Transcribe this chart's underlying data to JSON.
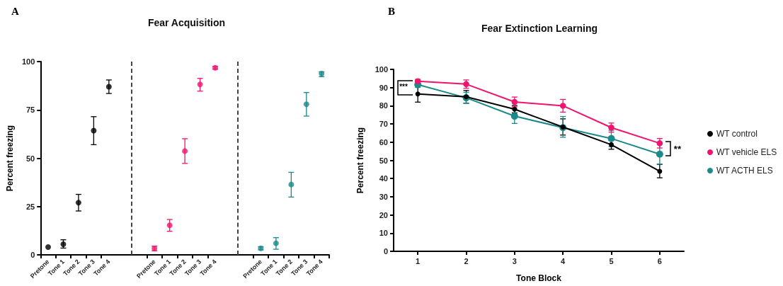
{
  "chart_data": [
    {
      "type": "scatter",
      "title": "Fear Acquisition",
      "ylabel": "Percent freezing",
      "annotations": [
        "A"
      ],
      "categories": [
        "Pretone",
        "Tone 1",
        "Tone 2",
        "Tone 3",
        "Tone 4",
        null,
        null,
        "Pretone",
        "Tone 1",
        "Tone 2",
        "Tone 3",
        "Tone 4",
        null,
        null,
        "Pretone",
        "Tone 1",
        "Tone 2",
        "Tone 3",
        "Tone 4"
      ],
      "ylim": [
        0,
        100
      ],
      "yticks": [
        0,
        25,
        50,
        75,
        100
      ],
      "grid": false,
      "legend": false,
      "marker": "circle",
      "series": [
        {
          "color": "#000000",
          "values": [
            4,
            5.5,
            27,
            64.3,
            87,
            null,
            null,
            null,
            null,
            null,
            null,
            null,
            null,
            null,
            null,
            null,
            null,
            null,
            null
          ],
          "errors": [
            null,
            [
              3.5,
              7.8
            ],
            [
              22.7,
              31.3
            ],
            [
              57,
              71.5
            ],
            [
              83.5,
              90.5
            ],
            null,
            null,
            null,
            null,
            null,
            null,
            null,
            null,
            null,
            null,
            null,
            null,
            null,
            null
          ]
        },
        {
          "color": "#f0146e",
          "values": [
            null,
            null,
            null,
            null,
            null,
            null,
            null,
            3.3,
            15.3,
            53.7,
            88.2,
            96.8,
            null,
            null,
            null,
            null,
            null,
            null,
            null
          ],
          "errors": [
            null,
            null,
            null,
            null,
            null,
            null,
            null,
            1.2,
            [
              12.2,
              18.3
            ],
            [
              47.3,
              60.1
            ],
            [
              84.7,
              91.3
            ],
            0.7,
            null,
            null,
            null,
            null,
            null,
            null,
            null
          ]
        },
        {
          "color": "#1a8a8a",
          "values": [
            null,
            null,
            null,
            null,
            null,
            null,
            null,
            null,
            null,
            null,
            null,
            null,
            null,
            null,
            3.4,
            6,
            36.4,
            77.9,
            93.8
          ],
          "errors": [
            null,
            null,
            null,
            null,
            null,
            null,
            null,
            null,
            null,
            null,
            null,
            null,
            null,
            null,
            0.8,
            [
              2.9,
              8.9
            ],
            [
              29.9,
              42.7
            ],
            [
              71.8,
              84
            ],
            [
              92.2,
              94.7
            ]
          ]
        }
      ]
    },
    {
      "type": "line",
      "title": "Fear Extinction Learning",
      "xlabel": "Tone Block",
      "ylabel": "Percent freezing",
      "annotations": [
        "B",
        {
          "text": "***",
          "x": "1",
          "y": 90
        },
        {
          "text": "**",
          "x": "6",
          "y": 56.5
        }
      ],
      "categories": [
        "1",
        "2",
        "3",
        "4",
        "5",
        "6"
      ],
      "ylim": [
        0,
        100
      ],
      "yticks": [
        0,
        10,
        20,
        30,
        40,
        50,
        60,
        70,
        80,
        90,
        100
      ],
      "grid": false,
      "legend": "right",
      "marker": "circle",
      "line_style": "solid",
      "series": [
        {
          "name": "WT control",
          "color": "#000000",
          "values": [
            86.5,
            84.9,
            78.1,
            68.3,
            58.6,
            44
          ],
          "errors": [
            4.5,
            3.5,
            2,
            [
              63.9,
              72.8
            ],
            2.5,
            [
              40.4,
              47.8
            ]
          ]
        },
        {
          "name": "WT vehicle ELS",
          "color": "#f0146e",
          "values": [
            93.5,
            91.9,
            82.1,
            80,
            68,
            59.4
          ],
          "errors": [
            1,
            2.3,
            2.7,
            3.5,
            2.5,
            2.6
          ]
        },
        {
          "name": "WT ACTH ELS",
          "color": "#1a8a8a",
          "values": [
            91.6,
            84.4,
            74.3,
            68,
            62,
            53.4
          ],
          "errors": [
            1.5,
            3,
            4,
            [
              62.7,
              74.1
            ],
            4.5,
            5.5
          ]
        }
      ]
    }
  ]
}
